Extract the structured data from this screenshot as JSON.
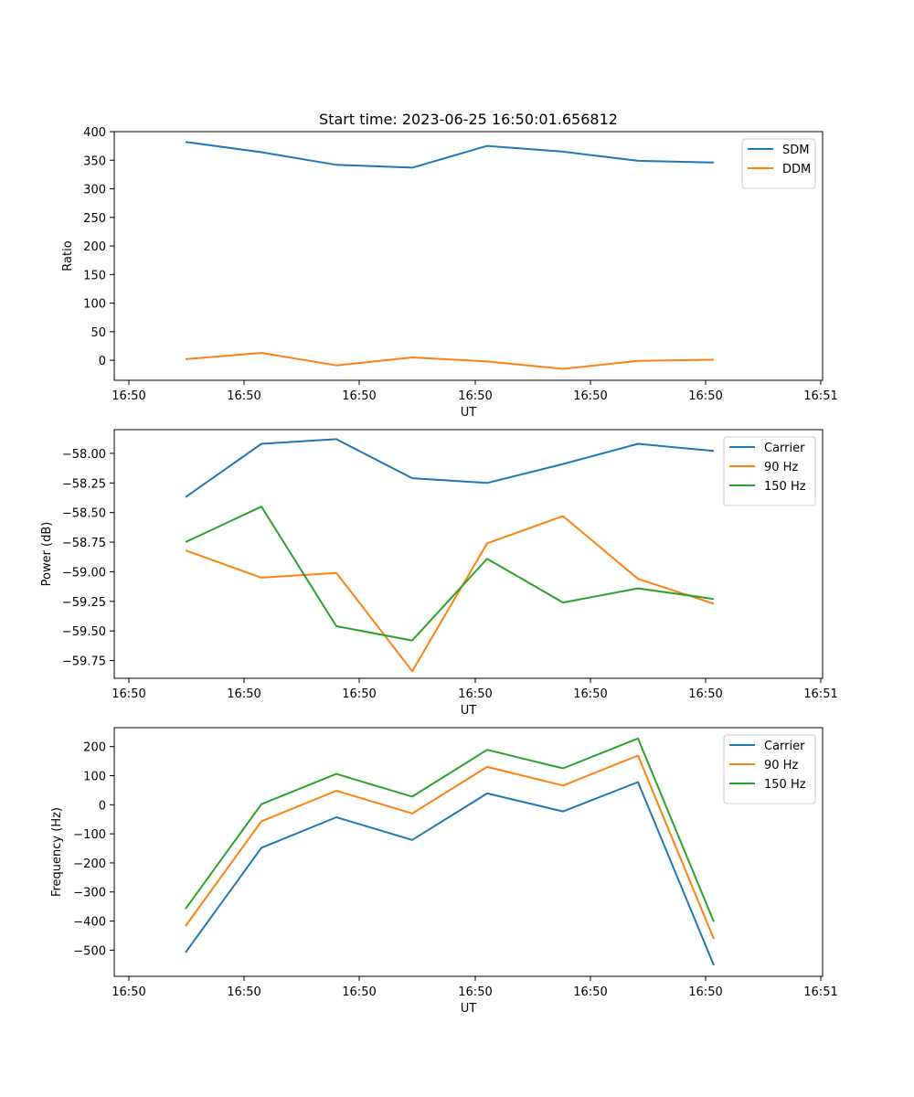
{
  "figure_title": "Start time: 2023-06-25 16:50:01.656812",
  "colors": {
    "blue": "#1f77b4",
    "orange": "#ff7f0e",
    "green": "#2ca02c"
  },
  "chart_data": [
    {
      "type": "line",
      "title": "Start time: 2023-06-25 16:50:01.656812",
      "xlabel": "UT",
      "ylabel": "Ratio",
      "x_tick_labels": [
        "16:50",
        "16:50",
        "16:50",
        "16:50",
        "16:50",
        "16:50",
        "16:51"
      ],
      "y_ticks": [
        0,
        50,
        100,
        150,
        200,
        250,
        300,
        350,
        400
      ],
      "y_tick_labels": [
        "0",
        "50",
        "100",
        "150",
        "200",
        "250",
        "300",
        "350",
        "400"
      ],
      "ylim": [
        -35,
        400
      ],
      "grid": false,
      "legend": "top-right",
      "series": [
        {
          "name": "SDM",
          "color": "#1f77b4",
          "values": [
            382,
            364,
            342,
            337,
            375,
            365,
            349,
            346
          ]
        },
        {
          "name": "DDM",
          "color": "#ff7f0e",
          "values": [
            2,
            13,
            -9,
            5,
            -2,
            -15,
            -1,
            1
          ]
        }
      ]
    },
    {
      "type": "line",
      "xlabel": "UT",
      "ylabel": "Power (dB)",
      "x_tick_labels": [
        "16:50",
        "16:50",
        "16:50",
        "16:50",
        "16:50",
        "16:50",
        "16:51"
      ],
      "y_ticks": [
        -58.0,
        -58.25,
        -58.5,
        -58.75,
        -59.0,
        -59.25,
        -59.5,
        -59.75
      ],
      "y_tick_labels": [
        "−58.00",
        "−58.25",
        "−58.50",
        "−58.75",
        "−59.00",
        "−59.25",
        "−59.50",
        "−59.75"
      ],
      "ylim": [
        -59.9,
        -57.8
      ],
      "grid": false,
      "legend": "top-right",
      "series": [
        {
          "name": "Carrier",
          "color": "#1f77b4",
          "values": [
            -58.37,
            -57.92,
            -57.88,
            -58.21,
            -58.25,
            -58.09,
            -57.92,
            -57.98
          ]
        },
        {
          "name": "90 Hz",
          "color": "#ff7f0e",
          "values": [
            -58.82,
            -59.05,
            -59.01,
            -59.84,
            -58.76,
            -58.53,
            -59.06,
            -59.27
          ]
        },
        {
          "name": "150 Hz",
          "color": "#2ca02c",
          "values": [
            -58.75,
            -58.45,
            -59.46,
            -59.58,
            -58.89,
            -59.26,
            -59.14,
            -59.23
          ]
        }
      ]
    },
    {
      "type": "line",
      "xlabel": "UT",
      "ylabel": "Frequency (Hz)",
      "x_tick_labels": [
        "16:50",
        "16:50",
        "16:50",
        "16:50",
        "16:50",
        "16:50",
        "16:51"
      ],
      "y_ticks": [
        200,
        100,
        0,
        -100,
        -200,
        -300,
        -400,
        -500
      ],
      "y_tick_labels": [
        "200",
        "100",
        "0",
        "−100",
        "−200",
        "−300",
        "−400",
        "−500"
      ],
      "ylim": [
        -590,
        265
      ],
      "grid": false,
      "legend": "top-right",
      "series": [
        {
          "name": "Carrier",
          "color": "#1f77b4",
          "values": [
            -508,
            -148,
            -43,
            -121,
            39,
            -23,
            78,
            -552
          ]
        },
        {
          "name": "90 Hz",
          "color": "#ff7f0e",
          "values": [
            -417,
            -57,
            48,
            -30,
            130,
            66,
            169,
            -461
          ]
        },
        {
          "name": "150 Hz",
          "color": "#2ca02c",
          "values": [
            -358,
            2,
            106,
            28,
            189,
            125,
            228,
            -402
          ]
        }
      ]
    }
  ]
}
